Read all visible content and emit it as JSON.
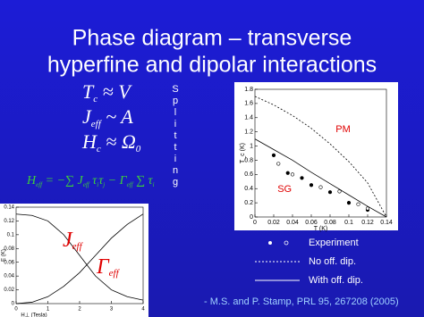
{
  "slide": {
    "title": [
      "Phase diagram – transverse",
      "hyperfine and dipolar interactions"
    ],
    "formulas": [
      [
        "T",
        "c",
        " ≈ V"
      ],
      [
        "J",
        "eff",
        " ~ A"
      ],
      [
        "H",
        "c",
        " ≈ Ω",
        "0"
      ]
    ],
    "hamiltonian": [
      "H",
      "eff",
      " = −∑ J",
      "eff",
      " τ",
      "i",
      "τ",
      "j",
      " − Γ",
      "eff",
      " ∑ τ",
      "i"
    ],
    "splitting": "Splitting",
    "legend": [
      "No off. dip.",
      "With off. dip."
    ],
    "citation": "- M.S. and P. Stamp, PRL 95, 267208 (2005)"
  },
  "chart_data": [
    {
      "type": "line",
      "xlabel": "T (K)",
      "ylabel": "T_c (K)",
      "xlim": [
        0,
        0.14
      ],
      "xticks": [
        0,
        0.02,
        0.04,
        0.06,
        0.08,
        0.1,
        0.12,
        0.14
      ],
      "ylim": [
        0,
        1.8
      ],
      "yticks": [
        0,
        0.2,
        0.4,
        0.6,
        0.8,
        1,
        1.2,
        1.4,
        1.6,
        1.8
      ],
      "annotations": [
        "PM",
        "SG"
      ],
      "series": [
        {
          "name": "Experiment",
          "style": "filled-dots",
          "color": "#000000",
          "x": [
            0.02,
            0.035,
            0.05,
            0.06,
            0.08,
            0.1,
            0.12
          ],
          "values": [
            0.87,
            0.62,
            0.55,
            0.45,
            0.35,
            0.2,
            0.1
          ]
        },
        {
          "style": "open-dots",
          "color": "#000000",
          "x": [
            0.025,
            0.04,
            0.07,
            0.09,
            0.11,
            0.12
          ],
          "values": [
            0.75,
            0.6,
            0.42,
            0.36,
            0.18,
            0.12
          ]
        },
        {
          "style": "dashed",
          "color": "#000000",
          "x": [
            0,
            0.02,
            0.04,
            0.06,
            0.08,
            0.1,
            0.12,
            0.14
          ],
          "values": [
            1.7,
            1.58,
            1.43,
            1.25,
            1.03,
            0.78,
            0.48,
            0
          ]
        },
        {
          "style": "solid",
          "color": "#000000",
          "x": [
            0,
            0.02,
            0.04,
            0.06,
            0.08,
            0.1,
            0.12,
            0.14
          ],
          "values": [
            1.1,
            0.95,
            0.8,
            0.63,
            0.47,
            0.31,
            0.15,
            0
          ]
        }
      ]
    },
    {
      "type": "line",
      "xlabel": "H⊥ (Tesla)",
      "ylabel": "E (K)",
      "xlim": [
        0,
        4
      ],
      "xticks": [
        0,
        1,
        2,
        3,
        4
      ],
      "ylim": [
        0,
        0.14
      ],
      "yticks": [
        0,
        0.02,
        0.04,
        0.06,
        0.08,
        0.1,
        0.12,
        0.14
      ],
      "series": [
        {
          "name": "J",
          "name_sub": "eff",
          "style": "solid",
          "color": "#000000",
          "x": [
            0,
            0.5,
            1,
            1.5,
            2,
            2.5,
            3,
            3.5,
            4
          ],
          "values": [
            0.13,
            0.128,
            0.12,
            0.1,
            0.07,
            0.04,
            0.02,
            0.01,
            0.005
          ]
        },
        {
          "name": "Γ",
          "name_sub": "eff",
          "style": "solid",
          "color": "#000000",
          "x": [
            0,
            0.5,
            1,
            1.5,
            2,
            2.5,
            3,
            3.5,
            4
          ],
          "values": [
            0,
            0.002,
            0.01,
            0.025,
            0.045,
            0.07,
            0.095,
            0.115,
            0.13
          ]
        }
      ]
    }
  ]
}
